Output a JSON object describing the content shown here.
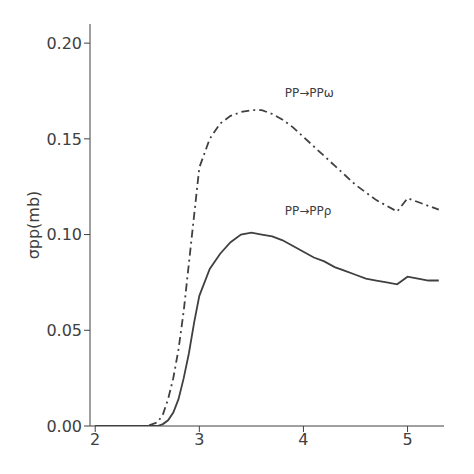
{
  "chart_data": {
    "type": "line",
    "x": [
      2.0,
      2.5,
      2.6,
      2.65,
      2.7,
      2.75,
      2.8,
      2.85,
      2.9,
      2.95,
      3.0,
      3.1,
      3.2,
      3.3,
      3.4,
      3.5,
      3.6,
      3.7,
      3.8,
      3.9,
      4.0,
      4.1,
      4.2,
      4.3,
      4.4,
      4.5,
      4.6,
      4.7,
      4.8,
      4.9,
      5.0,
      5.1,
      5.2,
      5.3
    ],
    "series": [
      {
        "color": "#404040",
        "line_style": "dashdot",
        "values": [
          0.0,
          0.0,
          0.002,
          0.006,
          0.014,
          0.025,
          0.04,
          0.06,
          0.085,
          0.11,
          0.135,
          0.15,
          0.158,
          0.162,
          0.164,
          0.165,
          0.165,
          0.163,
          0.16,
          0.156,
          0.151,
          0.146,
          0.141,
          0.136,
          0.131,
          0.126,
          0.122,
          0.118,
          0.115,
          0.112,
          0.119,
          0.117,
          0.115,
          0.113
        ]
      },
      {
        "color": "#404040",
        "line_style": "solid",
        "values": [
          0.0,
          0.0,
          0.0,
          0.001,
          0.003,
          0.007,
          0.014,
          0.025,
          0.038,
          0.054,
          0.068,
          0.082,
          0.09,
          0.096,
          0.1,
          0.101,
          0.1,
          0.099,
          0.097,
          0.094,
          0.091,
          0.088,
          0.086,
          0.083,
          0.081,
          0.079,
          0.077,
          0.076,
          0.075,
          0.074,
          0.078,
          0.077,
          0.076,
          0.076
        ]
      }
    ],
    "y_label": "σpp(mb)",
    "annotations": [
      {
        "text": "PP→PPω",
        "x": 3.82,
        "y": 0.172
      },
      {
        "text": "PP→PPρ",
        "x": 3.82,
        "y": 0.11
      }
    ],
    "color": "#404040",
    "xlim": [
      1.95,
      5.35
    ],
    "ylim": [
      0.0,
      0.21
    ],
    "xticks": [
      2,
      3,
      4,
      5
    ],
    "yticks": [
      {
        "value": 0.0,
        "label": "0.00"
      },
      0.05,
      {
        "value": 0.1,
        "label": "0.10"
      },
      0.15,
      {
        "value": 0.2,
        "label": "0.20"
      }
    ],
    "grid": false
  }
}
